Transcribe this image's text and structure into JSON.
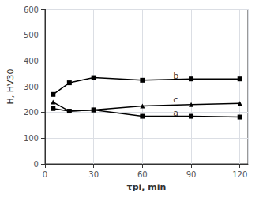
{
  "chart_data": {
    "type": "line",
    "x": [
      5,
      15,
      30,
      60,
      90,
      120
    ],
    "series": [
      {
        "values": [
          270,
          315,
          335,
          325,
          330,
          330
        ],
        "color": "#000000",
        "marker": "square"
      },
      {
        "values": [
          240,
          205,
          210,
          225,
          230,
          235
        ],
        "color": "#000000",
        "marker": "triangle"
      },
      {
        "values": [
          215,
          205,
          210,
          185,
          185,
          182
        ],
        "color": "#000000",
        "marker": "square"
      }
    ],
    "annotations": [
      {
        "text": "b",
        "x": 78,
        "y": 342
      },
      {
        "text": "c",
        "x": 78,
        "y": 248
      },
      {
        "text": "a",
        "x": 78,
        "y": 196
      }
    ],
    "xlabel": "τpi, min",
    "ylabel": "H, HV30",
    "xlim": [
      0,
      125
    ],
    "ylim": [
      0,
      600
    ],
    "xticks": [
      0,
      30,
      60,
      90,
      120
    ],
    "yticks": [
      0,
      100,
      200,
      300,
      400,
      500,
      600
    ],
    "grid": true
  }
}
